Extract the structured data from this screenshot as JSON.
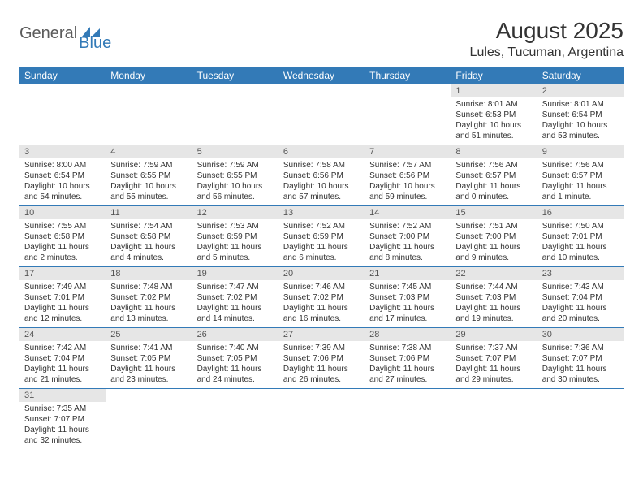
{
  "brand": {
    "part1": "General",
    "part2": "Blue"
  },
  "title": "August 2025",
  "location": "Lules, Tucuman, Argentina",
  "colors": {
    "header_bg": "#337ab7",
    "header_text": "#ffffff",
    "daynum_bg": "#e6e6e6",
    "border": "#337ab7",
    "text": "#333333",
    "logo_gray": "#5b5b5b",
    "logo_blue": "#337ab7"
  },
  "weekdays": [
    "Sunday",
    "Monday",
    "Tuesday",
    "Wednesday",
    "Thursday",
    "Friday",
    "Saturday"
  ],
  "weeks": [
    [
      null,
      null,
      null,
      null,
      null,
      {
        "n": "1",
        "sr": "Sunrise: 8:01 AM",
        "ss": "Sunset: 6:53 PM",
        "dl1": "Daylight: 10 hours",
        "dl2": "and 51 minutes."
      },
      {
        "n": "2",
        "sr": "Sunrise: 8:01 AM",
        "ss": "Sunset: 6:54 PM",
        "dl1": "Daylight: 10 hours",
        "dl2": "and 53 minutes."
      }
    ],
    [
      {
        "n": "3",
        "sr": "Sunrise: 8:00 AM",
        "ss": "Sunset: 6:54 PM",
        "dl1": "Daylight: 10 hours",
        "dl2": "and 54 minutes."
      },
      {
        "n": "4",
        "sr": "Sunrise: 7:59 AM",
        "ss": "Sunset: 6:55 PM",
        "dl1": "Daylight: 10 hours",
        "dl2": "and 55 minutes."
      },
      {
        "n": "5",
        "sr": "Sunrise: 7:59 AM",
        "ss": "Sunset: 6:55 PM",
        "dl1": "Daylight: 10 hours",
        "dl2": "and 56 minutes."
      },
      {
        "n": "6",
        "sr": "Sunrise: 7:58 AM",
        "ss": "Sunset: 6:56 PM",
        "dl1": "Daylight: 10 hours",
        "dl2": "and 57 minutes."
      },
      {
        "n": "7",
        "sr": "Sunrise: 7:57 AM",
        "ss": "Sunset: 6:56 PM",
        "dl1": "Daylight: 10 hours",
        "dl2": "and 59 minutes."
      },
      {
        "n": "8",
        "sr": "Sunrise: 7:56 AM",
        "ss": "Sunset: 6:57 PM",
        "dl1": "Daylight: 11 hours",
        "dl2": "and 0 minutes."
      },
      {
        "n": "9",
        "sr": "Sunrise: 7:56 AM",
        "ss": "Sunset: 6:57 PM",
        "dl1": "Daylight: 11 hours",
        "dl2": "and 1 minute."
      }
    ],
    [
      {
        "n": "10",
        "sr": "Sunrise: 7:55 AM",
        "ss": "Sunset: 6:58 PM",
        "dl1": "Daylight: 11 hours",
        "dl2": "and 2 minutes."
      },
      {
        "n": "11",
        "sr": "Sunrise: 7:54 AM",
        "ss": "Sunset: 6:58 PM",
        "dl1": "Daylight: 11 hours",
        "dl2": "and 4 minutes."
      },
      {
        "n": "12",
        "sr": "Sunrise: 7:53 AM",
        "ss": "Sunset: 6:59 PM",
        "dl1": "Daylight: 11 hours",
        "dl2": "and 5 minutes."
      },
      {
        "n": "13",
        "sr": "Sunrise: 7:52 AM",
        "ss": "Sunset: 6:59 PM",
        "dl1": "Daylight: 11 hours",
        "dl2": "and 6 minutes."
      },
      {
        "n": "14",
        "sr": "Sunrise: 7:52 AM",
        "ss": "Sunset: 7:00 PM",
        "dl1": "Daylight: 11 hours",
        "dl2": "and 8 minutes."
      },
      {
        "n": "15",
        "sr": "Sunrise: 7:51 AM",
        "ss": "Sunset: 7:00 PM",
        "dl1": "Daylight: 11 hours",
        "dl2": "and 9 minutes."
      },
      {
        "n": "16",
        "sr": "Sunrise: 7:50 AM",
        "ss": "Sunset: 7:01 PM",
        "dl1": "Daylight: 11 hours",
        "dl2": "and 10 minutes."
      }
    ],
    [
      {
        "n": "17",
        "sr": "Sunrise: 7:49 AM",
        "ss": "Sunset: 7:01 PM",
        "dl1": "Daylight: 11 hours",
        "dl2": "and 12 minutes."
      },
      {
        "n": "18",
        "sr": "Sunrise: 7:48 AM",
        "ss": "Sunset: 7:02 PM",
        "dl1": "Daylight: 11 hours",
        "dl2": "and 13 minutes."
      },
      {
        "n": "19",
        "sr": "Sunrise: 7:47 AM",
        "ss": "Sunset: 7:02 PM",
        "dl1": "Daylight: 11 hours",
        "dl2": "and 14 minutes."
      },
      {
        "n": "20",
        "sr": "Sunrise: 7:46 AM",
        "ss": "Sunset: 7:02 PM",
        "dl1": "Daylight: 11 hours",
        "dl2": "and 16 minutes."
      },
      {
        "n": "21",
        "sr": "Sunrise: 7:45 AM",
        "ss": "Sunset: 7:03 PM",
        "dl1": "Daylight: 11 hours",
        "dl2": "and 17 minutes."
      },
      {
        "n": "22",
        "sr": "Sunrise: 7:44 AM",
        "ss": "Sunset: 7:03 PM",
        "dl1": "Daylight: 11 hours",
        "dl2": "and 19 minutes."
      },
      {
        "n": "23",
        "sr": "Sunrise: 7:43 AM",
        "ss": "Sunset: 7:04 PM",
        "dl1": "Daylight: 11 hours",
        "dl2": "and 20 minutes."
      }
    ],
    [
      {
        "n": "24",
        "sr": "Sunrise: 7:42 AM",
        "ss": "Sunset: 7:04 PM",
        "dl1": "Daylight: 11 hours",
        "dl2": "and 21 minutes."
      },
      {
        "n": "25",
        "sr": "Sunrise: 7:41 AM",
        "ss": "Sunset: 7:05 PM",
        "dl1": "Daylight: 11 hours",
        "dl2": "and 23 minutes."
      },
      {
        "n": "26",
        "sr": "Sunrise: 7:40 AM",
        "ss": "Sunset: 7:05 PM",
        "dl1": "Daylight: 11 hours",
        "dl2": "and 24 minutes."
      },
      {
        "n": "27",
        "sr": "Sunrise: 7:39 AM",
        "ss": "Sunset: 7:06 PM",
        "dl1": "Daylight: 11 hours",
        "dl2": "and 26 minutes."
      },
      {
        "n": "28",
        "sr": "Sunrise: 7:38 AM",
        "ss": "Sunset: 7:06 PM",
        "dl1": "Daylight: 11 hours",
        "dl2": "and 27 minutes."
      },
      {
        "n": "29",
        "sr": "Sunrise: 7:37 AM",
        "ss": "Sunset: 7:07 PM",
        "dl1": "Daylight: 11 hours",
        "dl2": "and 29 minutes."
      },
      {
        "n": "30",
        "sr": "Sunrise: 7:36 AM",
        "ss": "Sunset: 7:07 PM",
        "dl1": "Daylight: 11 hours",
        "dl2": "and 30 minutes."
      }
    ],
    [
      {
        "n": "31",
        "sr": "Sunrise: 7:35 AM",
        "ss": "Sunset: 7:07 PM",
        "dl1": "Daylight: 11 hours",
        "dl2": "and 32 minutes."
      },
      null,
      null,
      null,
      null,
      null,
      null
    ]
  ]
}
